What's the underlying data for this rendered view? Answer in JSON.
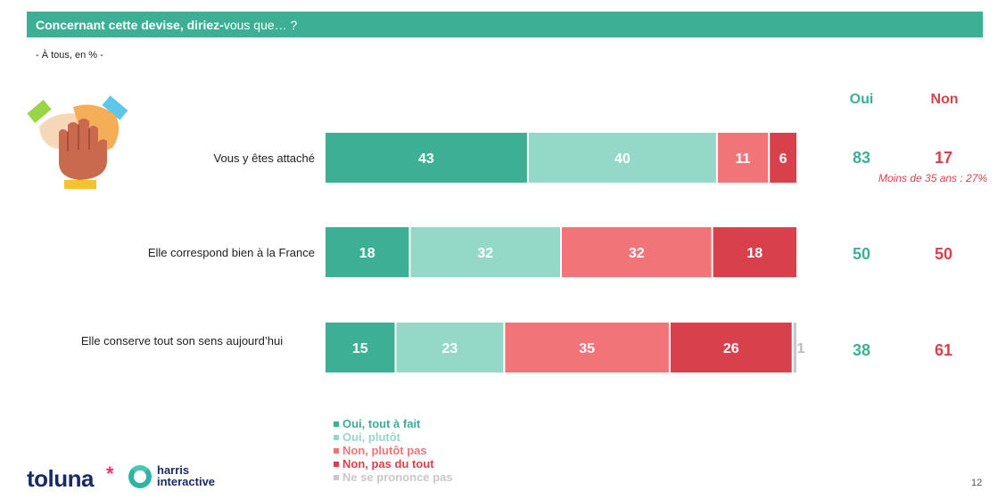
{
  "header": {
    "title_bold": "Concernant cette devise, diriez-",
    "title_rest": "vous que… ?"
  },
  "subtitle": "- À tous, en % -",
  "columns": {
    "oui": "Oui",
    "non": "Non"
  },
  "rows": [
    {
      "label": "Vous y êtes attaché",
      "oui": "83",
      "non": "17"
    },
    {
      "label": "Elle correspond bien à la France",
      "oui": "50",
      "non": "50"
    },
    {
      "label": "Elle conserve tout son sens aujourd’hui",
      "oui": "38",
      "non": "61"
    }
  ],
  "note": "Moins de 35 ans : 27%",
  "colors": {
    "title_bar": "#3daf95",
    "oui_tout_a_fait": "#3daf95",
    "oui_plutot": "#94d8c8",
    "non_plutot_pas": "#f07478",
    "non_pas_du_tout": "#d8414b",
    "ne_se_prononce_pas": "#c8c8c8"
  },
  "chart_data": {
    "type": "bar",
    "orientation": "horizontal",
    "stacked": true,
    "categories": [
      "Vous y êtes attaché",
      "Elle correspond bien à la France",
      "Elle conserve tout son sens aujourd’hui"
    ],
    "series": [
      {
        "name": "Oui, tout à fait",
        "values": [
          43,
          18,
          15
        ],
        "color": "#3daf95"
      },
      {
        "name": "Oui, plutôt",
        "values": [
          40,
          32,
          23
        ],
        "color": "#94d8c8"
      },
      {
        "name": "Non, plutôt pas",
        "values": [
          11,
          32,
          35
        ],
        "color": "#f07478"
      },
      {
        "name": "Non, pas du tout",
        "values": [
          6,
          18,
          26
        ],
        "color": "#d8414b"
      },
      {
        "name": "Ne se prononce pas",
        "values": [
          0,
          0,
          1
        ],
        "color": "#c8c8c8"
      }
    ],
    "xlim": [
      0,
      100
    ],
    "legend_position": "bottom-left"
  },
  "legend": [
    {
      "label": "Oui, tout à fait",
      "color": "#3daf95"
    },
    {
      "label": "Oui, plutôt",
      "color": "#94d8c8"
    },
    {
      "label": "Non, plutôt pas",
      "color": "#f07478"
    },
    {
      "label": "Non, pas du tout",
      "color": "#d8414b"
    },
    {
      "label": "Ne se prononce pas",
      "color": "#c8c8c8"
    }
  ],
  "footer": {
    "brand1": "toluna",
    "brand2_line1": "harris",
    "brand2_line2": "interactive",
    "page_number": "12"
  },
  "icons": {
    "illustration": "stacked-hands-icon",
    "brand_mark": "harris-ring-icon"
  }
}
